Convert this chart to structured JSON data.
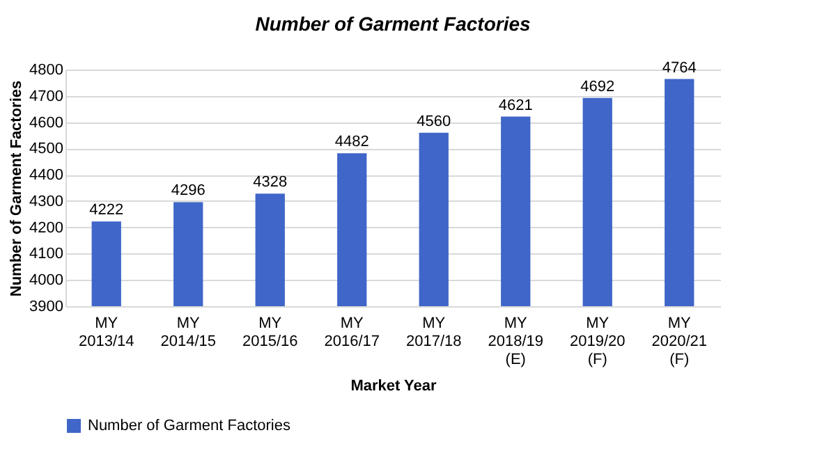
{
  "chart_data": {
    "type": "bar",
    "title": "Number of Garment Factories",
    "xlabel": "Market Year",
    "ylabel": "Number of Garment Factories",
    "categories": [
      "MY 2013/14",
      "MY 2014/15",
      "MY 2015/16",
      "MY 2016/17",
      "MY 2017/18",
      "MY 2018/19 (E)",
      "MY 2019/20 (F)",
      "MY 2020/21 (F)"
    ],
    "series": [
      {
        "name": "Number of Garment Factories",
        "color": "#3f66c8",
        "values": [
          4222,
          4296,
          4328,
          4482,
          4560,
          4621,
          4692,
          4764
        ]
      }
    ],
    "ylim": [
      3900,
      4800
    ],
    "yticks": [
      3900,
      4000,
      4100,
      4200,
      4300,
      4400,
      4500,
      4600,
      4700,
      4800
    ],
    "grid": "y",
    "legend": "bottom",
    "data_labels": true
  }
}
